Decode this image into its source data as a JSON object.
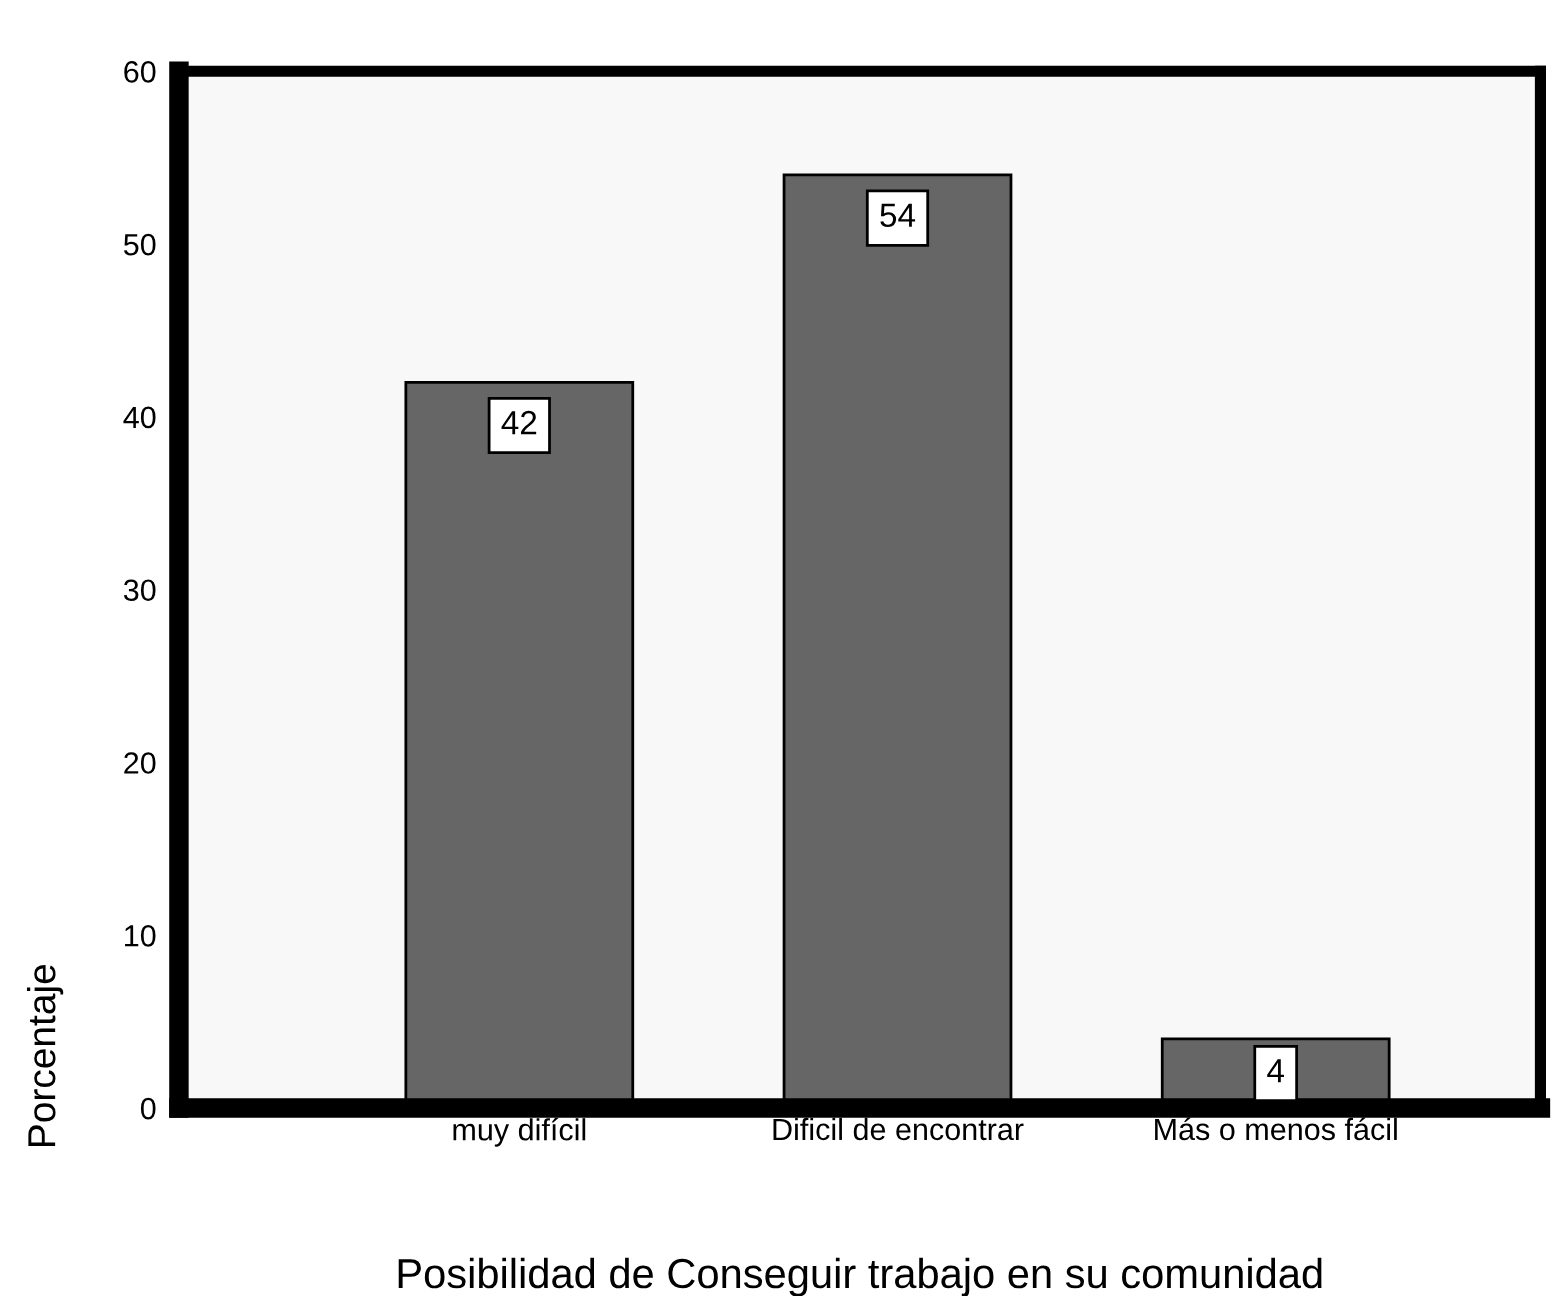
{
  "chart_data": {
    "type": "bar",
    "xlabel": "Posibilidad de Conseguir trabajo en su comunidad",
    "ylabel": "Porcentaje",
    "categories": [
      "muy difícil",
      "Dificil de encontrar",
      "Más o menos fácil"
    ],
    "values": [
      42,
      54,
      4
    ],
    "color": "#666666",
    "data_labels": true,
    "ylim": [
      0,
      60
    ],
    "yticks": [
      0,
      10,
      20,
      30,
      40,
      50,
      60
    ],
    "grid": false,
    "legend": false
  }
}
